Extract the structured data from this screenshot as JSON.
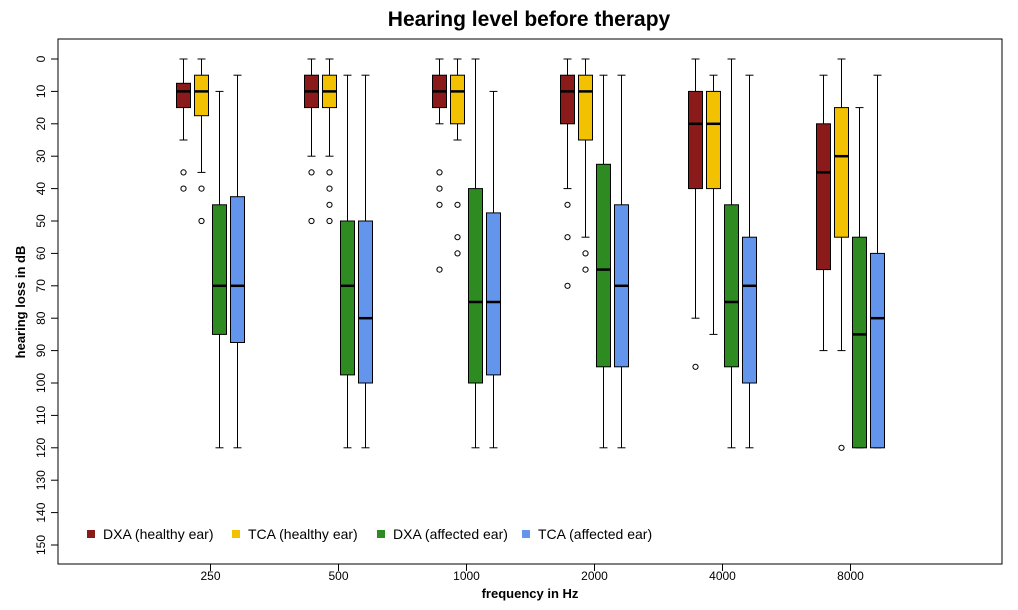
{
  "chart_data": {
    "type": "boxplot",
    "title": "Hearing level before therapy",
    "xlabel": "frequency in Hz",
    "ylabel": "hearing loss in dB",
    "ylim": [
      0,
      150
    ],
    "y_reversed": true,
    "y_ticks": [
      0,
      10,
      20,
      30,
      40,
      50,
      60,
      70,
      80,
      90,
      100,
      110,
      120,
      130,
      140,
      150
    ],
    "categories": [
      "250",
      "500",
      "1000",
      "2000",
      "4000",
      "8000"
    ],
    "legend_position": "bottom-left",
    "series": [
      {
        "name": "DXA (healthy ear)",
        "color": "#8B1A1A",
        "boxes": [
          {
            "min": 0,
            "q1": 7.5,
            "median": 10,
            "q3": 15,
            "max": 25,
            "outliers": [
              35,
              40
            ]
          },
          {
            "min": 0,
            "q1": 5,
            "median": 10,
            "q3": 15,
            "max": 30,
            "outliers": [
              35,
              50
            ]
          },
          {
            "min": 0,
            "q1": 5,
            "median": 10,
            "q3": 15,
            "max": 20,
            "outliers": [
              35,
              40,
              45,
              65
            ]
          },
          {
            "min": 0,
            "q1": 5,
            "median": 10,
            "q3": 20,
            "max": 40,
            "outliers": [
              45,
              55,
              70
            ]
          },
          {
            "min": 0,
            "q1": 10,
            "median": 20,
            "q3": 40,
            "max": 80,
            "outliers": [
              95
            ]
          },
          {
            "min": 5,
            "q1": 20,
            "median": 35,
            "q3": 65,
            "max": 90,
            "outliers": []
          }
        ]
      },
      {
        "name": "TCA (healthy ear)",
        "color": "#F2C200",
        "boxes": [
          {
            "min": 0,
            "q1": 5,
            "median": 10,
            "q3": 17.5,
            "max": 35,
            "outliers": [
              40,
              50
            ]
          },
          {
            "min": 0,
            "q1": 5,
            "median": 10,
            "q3": 15,
            "max": 30,
            "outliers": [
              35,
              40,
              45,
              50
            ]
          },
          {
            "min": 0,
            "q1": 5,
            "median": 10,
            "q3": 20,
            "max": 25,
            "outliers": [
              45,
              55,
              60
            ]
          },
          {
            "min": 0,
            "q1": 5,
            "median": 10,
            "q3": 25,
            "max": 55,
            "outliers": [
              60,
              65
            ]
          },
          {
            "min": 5,
            "q1": 10,
            "median": 20,
            "q3": 40,
            "max": 85,
            "outliers": []
          },
          {
            "min": 0,
            "q1": 15,
            "median": 30,
            "q3": 55,
            "max": 90,
            "outliers": [
              120
            ]
          }
        ]
      },
      {
        "name": "DXA (affected ear)",
        "color": "#2E8B22",
        "boxes": [
          {
            "min": 10,
            "q1": 45,
            "median": 70,
            "q3": 85,
            "max": 120,
            "outliers": []
          },
          {
            "min": 5,
            "q1": 50,
            "median": 70,
            "q3": 97.5,
            "max": 120,
            "outliers": []
          },
          {
            "min": 0,
            "q1": 40,
            "median": 75,
            "q3": 100,
            "max": 120,
            "outliers": []
          },
          {
            "min": 5,
            "q1": 32.5,
            "median": 65,
            "q3": 95,
            "max": 120,
            "outliers": []
          },
          {
            "min": 0,
            "q1": 45,
            "median": 75,
            "q3": 95,
            "max": 120,
            "outliers": []
          },
          {
            "min": 15,
            "q1": 55,
            "median": 85,
            "q3": 120,
            "max": 120,
            "outliers": []
          }
        ]
      },
      {
        "name": "TCA (affected ear)",
        "color": "#6495ED",
        "boxes": [
          {
            "min": 5,
            "q1": 42.5,
            "median": 70,
            "q3": 87.5,
            "max": 120,
            "outliers": []
          },
          {
            "min": 5,
            "q1": 50,
            "median": 80,
            "q3": 100,
            "max": 120,
            "outliers": []
          },
          {
            "min": 10,
            "q1": 47.5,
            "median": 75,
            "q3": 97.5,
            "max": 120,
            "outliers": []
          },
          {
            "min": 5,
            "q1": 45,
            "median": 70,
            "q3": 95,
            "max": 120,
            "outliers": []
          },
          {
            "min": 5,
            "q1": 55,
            "median": 70,
            "q3": 100,
            "max": 120,
            "outliers": []
          },
          {
            "min": 5,
            "q1": 60,
            "median": 80,
            "q3": 120,
            "max": 120,
            "outliers": []
          }
        ]
      }
    ]
  }
}
